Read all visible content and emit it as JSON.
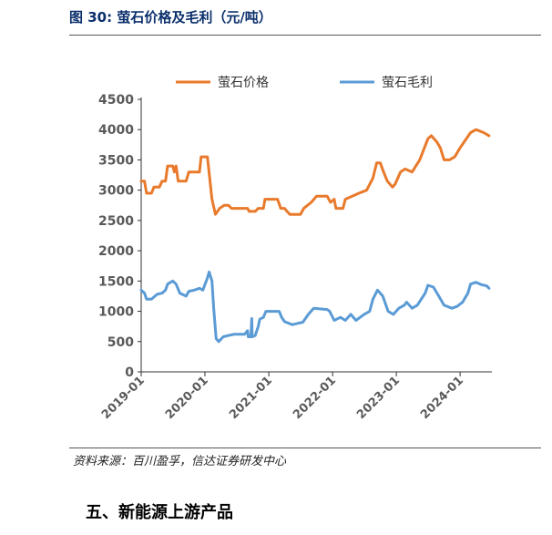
{
  "figure": {
    "title": "图 30:  萤石价格及毛利（元/吨）",
    "source": "资料来源：百川盈孚，信达证券研发中心"
  },
  "section_heading": "五、新能源上游产品",
  "colors": {
    "price": "#e97a2b",
    "margin": "#5b9bd5",
    "title": "#0b2f6b"
  },
  "chart_data": {
    "type": "line",
    "title": "",
    "xlabel": "",
    "ylabel": "",
    "ylim": [
      0,
      4500
    ],
    "yticks": [
      0,
      500,
      1000,
      1500,
      2000,
      2500,
      3000,
      3500,
      4000,
      4500
    ],
    "xlim": [
      "2019-01",
      "2024-07"
    ],
    "xticks": [
      "2019-01",
      "2020-01",
      "2021-01",
      "2022-01",
      "2023-01",
      "2024-01"
    ],
    "legend_position": "top",
    "grid": false,
    "series": [
      {
        "name": "萤石价格",
        "color": "#e97a2b",
        "points": [
          [
            "2019-01-01",
            3150
          ],
          [
            "2019-01-20",
            3150
          ],
          [
            "2019-02-01",
            2950
          ],
          [
            "2019-03-01",
            2950
          ],
          [
            "2019-03-15",
            3050
          ],
          [
            "2019-04-15",
            3050
          ],
          [
            "2019-05-01",
            3150
          ],
          [
            "2019-05-20",
            3150
          ],
          [
            "2019-06-01",
            3400
          ],
          [
            "2019-07-01",
            3400
          ],
          [
            "2019-07-10",
            3300
          ],
          [
            "2019-07-20",
            3400
          ],
          [
            "2019-08-01",
            3150
          ],
          [
            "2019-09-15",
            3150
          ],
          [
            "2019-10-01",
            3300
          ],
          [
            "2019-12-01",
            3300
          ],
          [
            "2019-12-10",
            3550
          ],
          [
            "2020-01-15",
            3550
          ],
          [
            "2020-02-10",
            2850
          ],
          [
            "2020-03-01",
            2600
          ],
          [
            "2020-03-25",
            2700
          ],
          [
            "2020-04-20",
            2750
          ],
          [
            "2020-05-15",
            2750
          ],
          [
            "2020-06-01",
            2700
          ],
          [
            "2020-09-01",
            2700
          ],
          [
            "2020-09-10",
            2650
          ],
          [
            "2020-10-15",
            2650
          ],
          [
            "2020-11-01",
            2700
          ],
          [
            "2020-12-01",
            2700
          ],
          [
            "2020-12-10",
            2850
          ],
          [
            "2021-02-20",
            2850
          ],
          [
            "2021-03-10",
            2700
          ],
          [
            "2021-04-01",
            2700
          ],
          [
            "2021-04-15",
            2650
          ],
          [
            "2021-05-01",
            2600
          ],
          [
            "2021-07-01",
            2600
          ],
          [
            "2021-07-20",
            2700
          ],
          [
            "2021-09-01",
            2800
          ],
          [
            "2021-10-01",
            2900
          ],
          [
            "2021-12-01",
            2900
          ],
          [
            "2021-12-20",
            2800
          ],
          [
            "2022-01-10",
            2850
          ],
          [
            "2022-01-20",
            2700
          ],
          [
            "2022-03-01",
            2700
          ],
          [
            "2022-03-15",
            2850
          ],
          [
            "2022-06-01",
            2950
          ],
          [
            "2022-07-15",
            3000
          ],
          [
            "2022-08-20",
            3200
          ],
          [
            "2022-09-10",
            3450
          ],
          [
            "2022-10-01",
            3450
          ],
          [
            "2022-10-20",
            3300
          ],
          [
            "2022-11-10",
            3150
          ],
          [
            "2022-12-10",
            3050
          ],
          [
            "2022-12-25",
            3100
          ],
          [
            "2023-01-25",
            3300
          ],
          [
            "2023-02-20",
            3350
          ],
          [
            "2023-04-01",
            3300
          ],
          [
            "2023-05-15",
            3500
          ],
          [
            "2023-07-01",
            3850
          ],
          [
            "2023-07-20",
            3900
          ],
          [
            "2023-08-20",
            3800
          ],
          [
            "2023-09-10",
            3700
          ],
          [
            "2023-10-01",
            3500
          ],
          [
            "2023-11-01",
            3500
          ],
          [
            "2023-12-01",
            3550
          ],
          [
            "2024-01-01",
            3700
          ],
          [
            "2024-03-01",
            3950
          ],
          [
            "2024-04-01",
            4000
          ],
          [
            "2024-05-15",
            3950
          ],
          [
            "2024-06-15",
            3900
          ]
        ]
      },
      {
        "name": "萤石毛利",
        "color": "#5b9bd5",
        "points": [
          [
            "2019-01-01",
            1350
          ],
          [
            "2019-01-20",
            1300
          ],
          [
            "2019-02-01",
            1200
          ],
          [
            "2019-03-01",
            1200
          ],
          [
            "2019-04-01",
            1280
          ],
          [
            "2019-05-01",
            1300
          ],
          [
            "2019-05-20",
            1350
          ],
          [
            "2019-06-01",
            1450
          ],
          [
            "2019-07-01",
            1500
          ],
          [
            "2019-07-20",
            1450
          ],
          [
            "2019-08-10",
            1300
          ],
          [
            "2019-09-15",
            1250
          ],
          [
            "2019-10-01",
            1330
          ],
          [
            "2019-11-01",
            1350
          ],
          [
            "2019-12-01",
            1380
          ],
          [
            "2019-12-20",
            1350
          ],
          [
            "2020-01-15",
            1550
          ],
          [
            "2020-01-25",
            1650
          ],
          [
            "2020-02-10",
            1500
          ],
          [
            "2020-02-20",
            1050
          ],
          [
            "2020-03-05",
            550
          ],
          [
            "2020-03-20",
            500
          ],
          [
            "2020-04-15",
            580
          ],
          [
            "2020-05-15",
            600
          ],
          [
            "2020-06-15",
            620
          ],
          [
            "2020-08-15",
            620
          ],
          [
            "2020-09-01",
            680
          ],
          [
            "2020-09-05",
            580
          ],
          [
            "2020-09-20",
            580
          ],
          [
            "2020-09-25",
            880
          ],
          [
            "2020-09-28",
            580
          ],
          [
            "2020-10-15",
            600
          ],
          [
            "2020-11-01",
            750
          ],
          [
            "2020-11-10",
            870
          ],
          [
            "2020-12-01",
            900
          ],
          [
            "2020-12-15",
            1000
          ],
          [
            "2021-03-01",
            1000
          ],
          [
            "2021-03-15",
            900
          ],
          [
            "2021-04-01",
            830
          ],
          [
            "2021-05-15",
            780
          ],
          [
            "2021-06-15",
            800
          ],
          [
            "2021-07-15",
            820
          ],
          [
            "2021-08-15",
            950
          ],
          [
            "2021-09-15",
            1050
          ],
          [
            "2021-12-01",
            1030
          ],
          [
            "2021-12-15",
            1000
          ],
          [
            "2022-01-10",
            850
          ],
          [
            "2022-02-15",
            900
          ],
          [
            "2022-03-15",
            850
          ],
          [
            "2022-04-15",
            950
          ],
          [
            "2022-05-15",
            850
          ],
          [
            "2022-07-01",
            950
          ],
          [
            "2022-08-01",
            1000
          ],
          [
            "2022-08-20",
            1200
          ],
          [
            "2022-09-15",
            1350
          ],
          [
            "2022-10-15",
            1250
          ],
          [
            "2022-11-15",
            1000
          ],
          [
            "2022-12-15",
            950
          ],
          [
            "2023-01-15",
            1050
          ],
          [
            "2023-02-15",
            1100
          ],
          [
            "2023-03-01",
            1150
          ],
          [
            "2023-04-01",
            1050
          ],
          [
            "2023-05-01",
            1100
          ],
          [
            "2023-06-15",
            1300
          ],
          [
            "2023-07-01",
            1430
          ],
          [
            "2023-08-01",
            1400
          ],
          [
            "2023-09-01",
            1250
          ],
          [
            "2023-10-01",
            1100
          ],
          [
            "2023-11-15",
            1050
          ],
          [
            "2023-12-15",
            1080
          ],
          [
            "2024-01-15",
            1150
          ],
          [
            "2024-02-15",
            1300
          ],
          [
            "2024-03-01",
            1450
          ],
          [
            "2024-04-01",
            1480
          ],
          [
            "2024-05-01",
            1440
          ],
          [
            "2024-06-01",
            1420
          ],
          [
            "2024-06-15",
            1380
          ]
        ]
      }
    ]
  }
}
